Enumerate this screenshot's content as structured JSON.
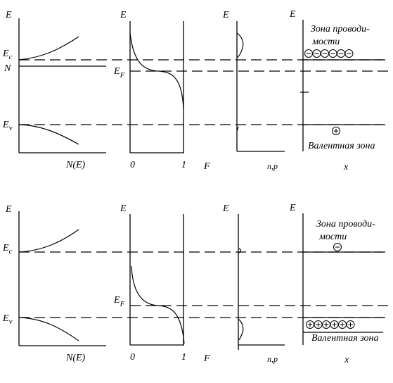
{
  "labels": {
    "E": "E",
    "Ec_main": "E",
    "Ec_sub": "c",
    "Ev_main": "E",
    "Ev_sub": "v",
    "EF_main": "E",
    "EF_sub": "F",
    "N": "N",
    "NE": "N(E)",
    "F": "F",
    "zero": "0",
    "one": "1",
    "np": "n,p",
    "x": "x",
    "conduction_line1": "Зона проводи-",
    "conduction_line2": "мости",
    "valence": "Валентная зона"
  },
  "carriers": {
    "top": {
      "electrons": 6,
      "holes": 1
    },
    "bottom": {
      "electrons": 1,
      "holes": 6
    }
  }
}
